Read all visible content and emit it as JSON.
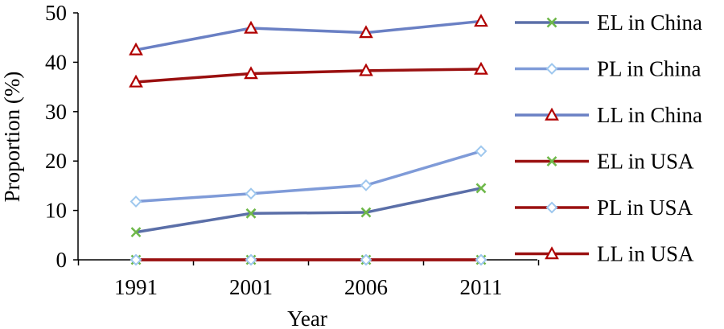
{
  "chart_data": {
    "type": "line",
    "title": "",
    "xlabel": "Year",
    "ylabel": "Proportion (%)",
    "categories": [
      "1991",
      "2001",
      "2006",
      "2011"
    ],
    "y_ticks": [
      "0",
      "10",
      "20",
      "30",
      "40",
      "50"
    ],
    "ylim": [
      0,
      50
    ],
    "grid": false,
    "legend_position": "right",
    "series": [
      {
        "name": "EL in China",
        "values": [
          5.6,
          9.4,
          9.6,
          14.5
        ],
        "color": "#5b6fa8",
        "marker": "x",
        "marker_color": "#6fb84a"
      },
      {
        "name": "PL in China",
        "values": [
          11.8,
          13.4,
          15.1,
          22.0
        ],
        "color": "#7f9bd8",
        "marker": "diamond",
        "marker_color": "#9ec7ee"
      },
      {
        "name": "LL in China",
        "values": [
          42.5,
          46.9,
          46.0,
          48.3
        ],
        "color": "#6a80c4",
        "marker": "triangle",
        "marker_color": "#b00000"
      },
      {
        "name": "EL in USA",
        "values": [
          0,
          0,
          0,
          0
        ],
        "color": "#9a1010",
        "marker": "x",
        "marker_color": "#6fb84a"
      },
      {
        "name": "PL in USA",
        "values": [
          0,
          0,
          0,
          0
        ],
        "color": "#9a1010",
        "marker": "diamond",
        "marker_color": "#9ec7ee"
      },
      {
        "name": "LL in USA",
        "values": [
          36.0,
          37.7,
          38.3,
          38.6
        ],
        "color": "#9a1010",
        "marker": "triangle",
        "marker_color": "#b00000"
      }
    ]
  }
}
